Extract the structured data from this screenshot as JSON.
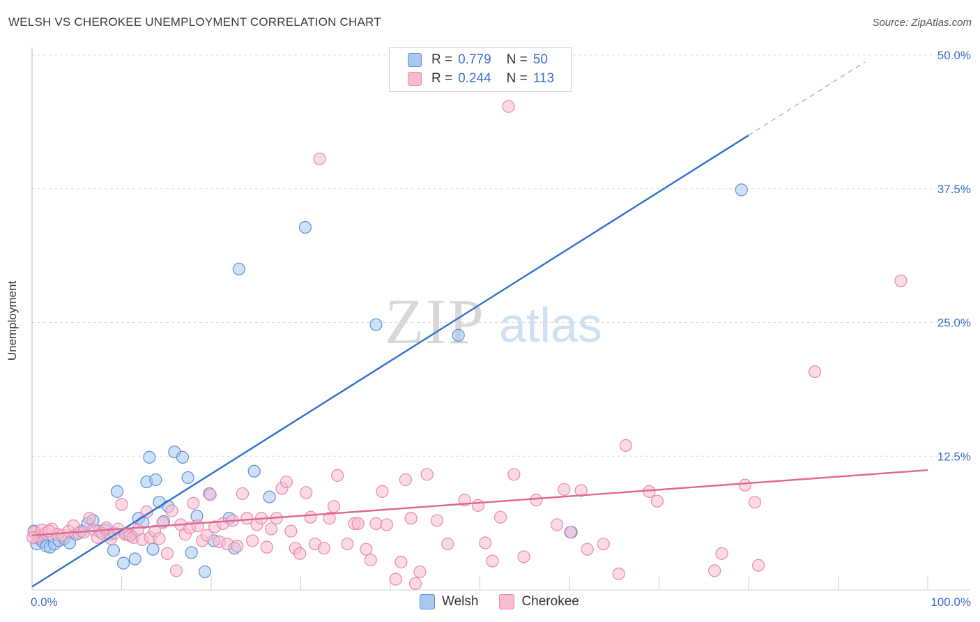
{
  "header": {
    "title": "WELSH VS CHEROKEE UNEMPLOYMENT CORRELATION CHART",
    "source": "Source: ZipAtlas.com"
  },
  "legend": {
    "rows": [
      {
        "r_label": "R =",
        "r_value": "0.779",
        "n_label": "N =",
        "n_value": "50"
      },
      {
        "r_label": "R =",
        "r_value": "0.244",
        "n_label": "N =",
        "n_value": "113"
      }
    ]
  },
  "bottom_legend": {
    "welsh": "Welsh",
    "cherokee": "Cherokee"
  },
  "watermark": {
    "zip": "ZIP",
    "atlas": "atlas"
  },
  "colors": {
    "welsh_fill": "#aac8f0",
    "welsh_stroke": "#5b8fd6",
    "welsh_line": "#2f6fd0",
    "cherokee_fill": "#f7bccf",
    "cherokee_stroke": "#e889a8",
    "cherokee_line": "#e0688f",
    "value_text": "#3a6fc6"
  },
  "chart_data": {
    "type": "scatter",
    "title": "WELSH VS CHEROKEE UNEMPLOYMENT CORRELATION CHART",
    "xlabel": "",
    "ylabel": "Unemployment",
    "xlim": [
      0,
      100
    ],
    "ylim": [
      0,
      50
    ],
    "x_tick_labels": [
      "0.0%",
      "100.0%"
    ],
    "y_ticks": [
      12.5,
      25.0,
      37.5,
      50.0
    ],
    "y_tick_labels": [
      "12.5%",
      "25.0%",
      "37.5%",
      "50.0%"
    ],
    "grid": "horizontal dashed",
    "legend_position": "top-center",
    "series": [
      {
        "name": "Welsh",
        "r": 0.779,
        "n": 50,
        "trend": {
          "x0": 0,
          "y0": 0.3,
          "x1": 80,
          "y1": 42.5,
          "dashed_to_x": 93
        },
        "points": [
          [
            0.5,
            4.3
          ],
          [
            0.8,
            4.8
          ],
          [
            1.2,
            4.5
          ],
          [
            1.6,
            4.1
          ],
          [
            2.0,
            4.0
          ],
          [
            2.5,
            4.3
          ],
          [
            3.0,
            4.6
          ],
          [
            3.6,
            4.8
          ],
          [
            4.2,
            4.4
          ],
          [
            4.9,
            5.2
          ],
          [
            5.5,
            5.5
          ],
          [
            6.2,
            6.2
          ],
          [
            6.8,
            6.5
          ],
          [
            7.5,
            5.5
          ],
          [
            8.2,
            5.6
          ],
          [
            8.7,
            5.2
          ],
          [
            9.1,
            3.7
          ],
          [
            9.5,
            9.2
          ],
          [
            10.2,
            2.5
          ],
          [
            10.6,
            5.2
          ],
          [
            11.0,
            5.1
          ],
          [
            11.5,
            2.9
          ],
          [
            11.9,
            6.7
          ],
          [
            12.4,
            6.3
          ],
          [
            12.8,
            10.1
          ],
          [
            13.1,
            12.4
          ],
          [
            13.5,
            3.8
          ],
          [
            13.8,
            10.3
          ],
          [
            14.2,
            8.2
          ],
          [
            14.7,
            6.4
          ],
          [
            15.2,
            7.8
          ],
          [
            15.9,
            12.9
          ],
          [
            16.8,
            12.4
          ],
          [
            17.4,
            10.5
          ],
          [
            17.8,
            3.5
          ],
          [
            18.4,
            6.9
          ],
          [
            19.3,
            1.7
          ],
          [
            19.8,
            9.0
          ],
          [
            20.3,
            4.6
          ],
          [
            22.0,
            6.7
          ],
          [
            22.6,
            3.9
          ],
          [
            23.1,
            30.0
          ],
          [
            24.8,
            11.1
          ],
          [
            26.5,
            8.7
          ],
          [
            30.5,
            33.9
          ],
          [
            38.4,
            24.8
          ],
          [
            47.6,
            23.8
          ],
          [
            60.2,
            5.4
          ],
          [
            79.2,
            37.4
          ],
          [
            0.2,
            5.5
          ]
        ]
      },
      {
        "name": "Cherokee",
        "r": 0.244,
        "n": 113,
        "trend": {
          "x0": 0,
          "y0": 5.1,
          "x1": 100,
          "y1": 11.2
        },
        "points": [
          [
            0.2,
            5.4
          ],
          [
            0.6,
            5.0
          ],
          [
            1.1,
            5.6
          ],
          [
            1.5,
            5.3
          ],
          [
            2.2,
            5.7
          ],
          [
            2.8,
            5.2
          ],
          [
            3.4,
            5.1
          ],
          [
            4.1,
            5.5
          ],
          [
            4.6,
            6.0
          ],
          [
            5.2,
            5.3
          ],
          [
            5.8,
            5.4
          ],
          [
            6.4,
            6.7
          ],
          [
            6.9,
            5.6
          ],
          [
            7.3,
            4.9
          ],
          [
            7.8,
            5.3
          ],
          [
            8.3,
            5.8
          ],
          [
            8.8,
            4.8
          ],
          [
            9.2,
            5.3
          ],
          [
            9.6,
            5.7
          ],
          [
            10.0,
            8.0
          ],
          [
            10.4,
            5.2
          ],
          [
            10.9,
            5.1
          ],
          [
            11.3,
            4.9
          ],
          [
            11.8,
            5.6
          ],
          [
            12.3,
            4.7
          ],
          [
            12.8,
            7.3
          ],
          [
            13.2,
            4.9
          ],
          [
            13.7,
            5.5
          ],
          [
            14.2,
            4.8
          ],
          [
            14.6,
            6.3
          ],
          [
            15.1,
            3.4
          ],
          [
            15.6,
            7.4
          ],
          [
            16.1,
            1.8
          ],
          [
            16.6,
            6.1
          ],
          [
            17.1,
            5.2
          ],
          [
            17.6,
            5.8
          ],
          [
            18.0,
            8.1
          ],
          [
            18.5,
            6.0
          ],
          [
            19.0,
            4.6
          ],
          [
            19.5,
            5.1
          ],
          [
            19.9,
            8.9
          ],
          [
            20.4,
            5.9
          ],
          [
            20.9,
            4.5
          ],
          [
            21.3,
            6.2
          ],
          [
            21.8,
            4.3
          ],
          [
            22.4,
            6.5
          ],
          [
            22.9,
            4.1
          ],
          [
            23.5,
            9.0
          ],
          [
            24.0,
            6.7
          ],
          [
            24.6,
            4.6
          ],
          [
            25.1,
            6.1
          ],
          [
            25.6,
            6.7
          ],
          [
            26.2,
            4.0
          ],
          [
            26.7,
            5.7
          ],
          [
            27.3,
            6.7
          ],
          [
            27.9,
            9.5
          ],
          [
            28.4,
            10.1
          ],
          [
            28.9,
            5.5
          ],
          [
            29.4,
            3.9
          ],
          [
            29.9,
            3.4
          ],
          [
            30.6,
            9.1
          ],
          [
            31.1,
            6.8
          ],
          [
            31.6,
            4.3
          ],
          [
            32.1,
            40.3
          ],
          [
            32.6,
            3.9
          ],
          [
            33.2,
            6.7
          ],
          [
            33.7,
            7.8
          ],
          [
            34.1,
            10.7
          ],
          [
            35.2,
            4.3
          ],
          [
            36.0,
            6.2
          ],
          [
            36.4,
            6.2
          ],
          [
            37.3,
            3.8
          ],
          [
            37.8,
            2.8
          ],
          [
            38.4,
            6.2
          ],
          [
            39.1,
            9.2
          ],
          [
            39.6,
            6.1
          ],
          [
            40.6,
            1.0
          ],
          [
            41.2,
            2.6
          ],
          [
            41.7,
            10.3
          ],
          [
            42.3,
            6.7
          ],
          [
            42.8,
            0.6
          ],
          [
            43.3,
            1.7
          ],
          [
            44.1,
            10.8
          ],
          [
            45.2,
            6.5
          ],
          [
            46.4,
            4.3
          ],
          [
            48.3,
            8.4
          ],
          [
            49.8,
            7.9
          ],
          [
            50.6,
            4.4
          ],
          [
            51.4,
            2.7
          ],
          [
            52.3,
            6.8
          ],
          [
            53.2,
            45.2
          ],
          [
            53.8,
            10.8
          ],
          [
            54.9,
            3.1
          ],
          [
            56.3,
            8.4
          ],
          [
            58.6,
            6.1
          ],
          [
            59.4,
            9.4
          ],
          [
            60.1,
            5.4
          ],
          [
            61.3,
            9.3
          ],
          [
            62.0,
            3.8
          ],
          [
            63.8,
            4.3
          ],
          [
            65.5,
            1.5
          ],
          [
            66.3,
            13.5
          ],
          [
            68.9,
            9.2
          ],
          [
            69.8,
            8.3
          ],
          [
            76.2,
            1.8
          ],
          [
            77.0,
            3.4
          ],
          [
            79.6,
            9.8
          ],
          [
            80.7,
            8.2
          ],
          [
            81.1,
            2.3
          ],
          [
            87.4,
            20.4
          ],
          [
            97.0,
            28.9
          ],
          [
            0.1,
            4.9
          ],
          [
            1.9,
            5.5
          ]
        ]
      }
    ]
  }
}
